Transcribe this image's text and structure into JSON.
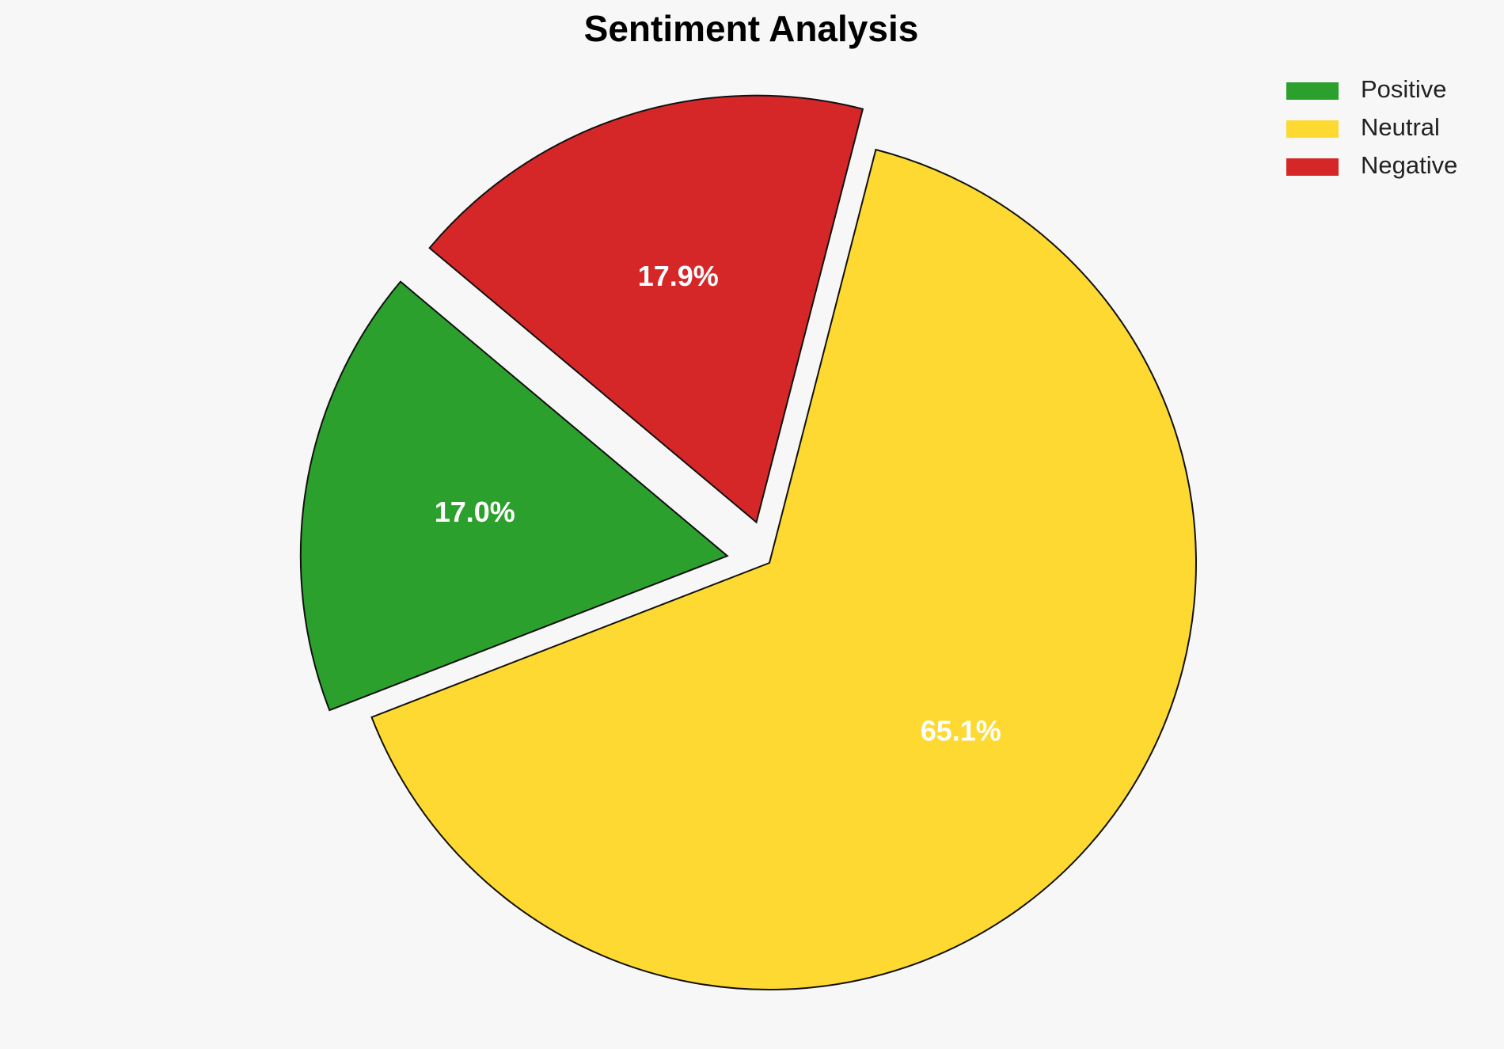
{
  "chart_data": {
    "type": "pie",
    "title": "Sentiment Analysis",
    "categories": [
      "Positive",
      "Neutral",
      "Negative"
    ],
    "values": [
      17.0,
      65.1,
      17.9
    ],
    "value_labels": [
      "17.0%",
      "65.1%",
      "17.9%"
    ],
    "colors": [
      "#2ca02c",
      "#fdd931",
      "#d62728"
    ],
    "legend": "upper right"
  }
}
